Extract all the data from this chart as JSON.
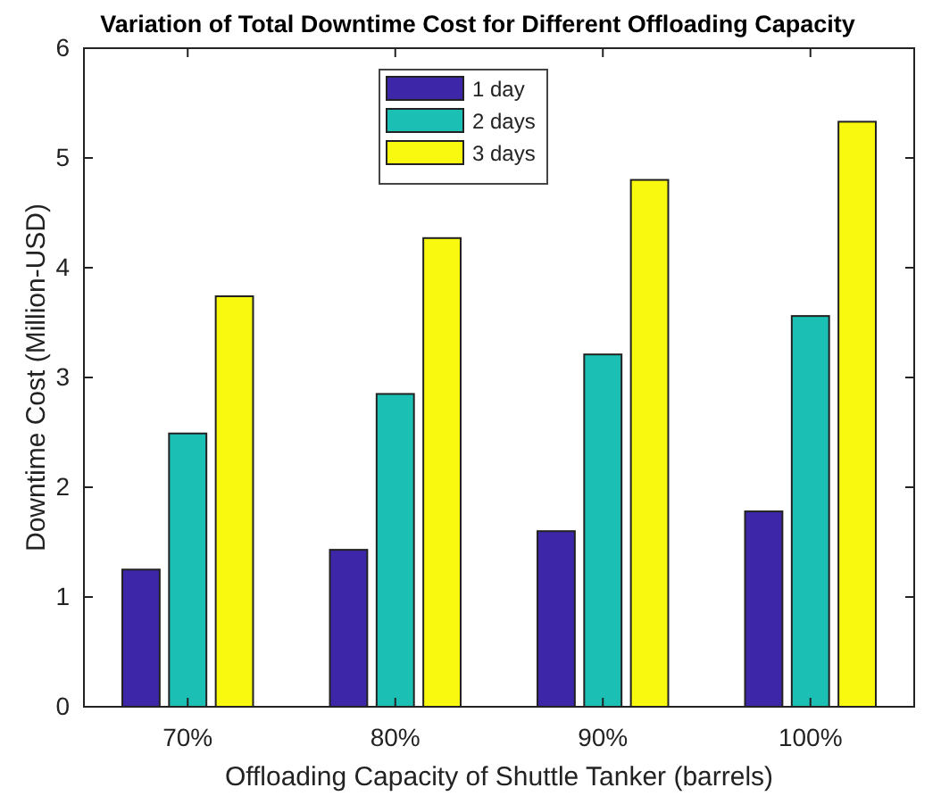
{
  "chart_data": {
    "type": "bar",
    "title": "Variation of Total Downtime Cost for Different Offloading Capacity",
    "xlabel": "Offloading Capacity of Shuttle Tanker (barrels)",
    "ylabel": "Downtime Cost (Million-USD)",
    "categories": [
      "70%",
      "80%",
      "90%",
      "100%"
    ],
    "series": [
      {
        "name": "1 day",
        "color": "#3d26a8",
        "values": [
          1.25,
          1.43,
          1.6,
          1.78
        ]
      },
      {
        "name": "2 days",
        "color": "#1bbfb4",
        "values": [
          2.49,
          2.85,
          3.21,
          3.56
        ]
      },
      {
        "name": "3 days",
        "color": "#f9f90f",
        "values": [
          3.74,
          4.27,
          4.8,
          5.33
        ]
      }
    ],
    "ylim": [
      0,
      6
    ],
    "yticks": [
      0,
      1,
      2,
      3,
      4,
      5,
      6
    ],
    "grid": false,
    "legend": "top"
  }
}
